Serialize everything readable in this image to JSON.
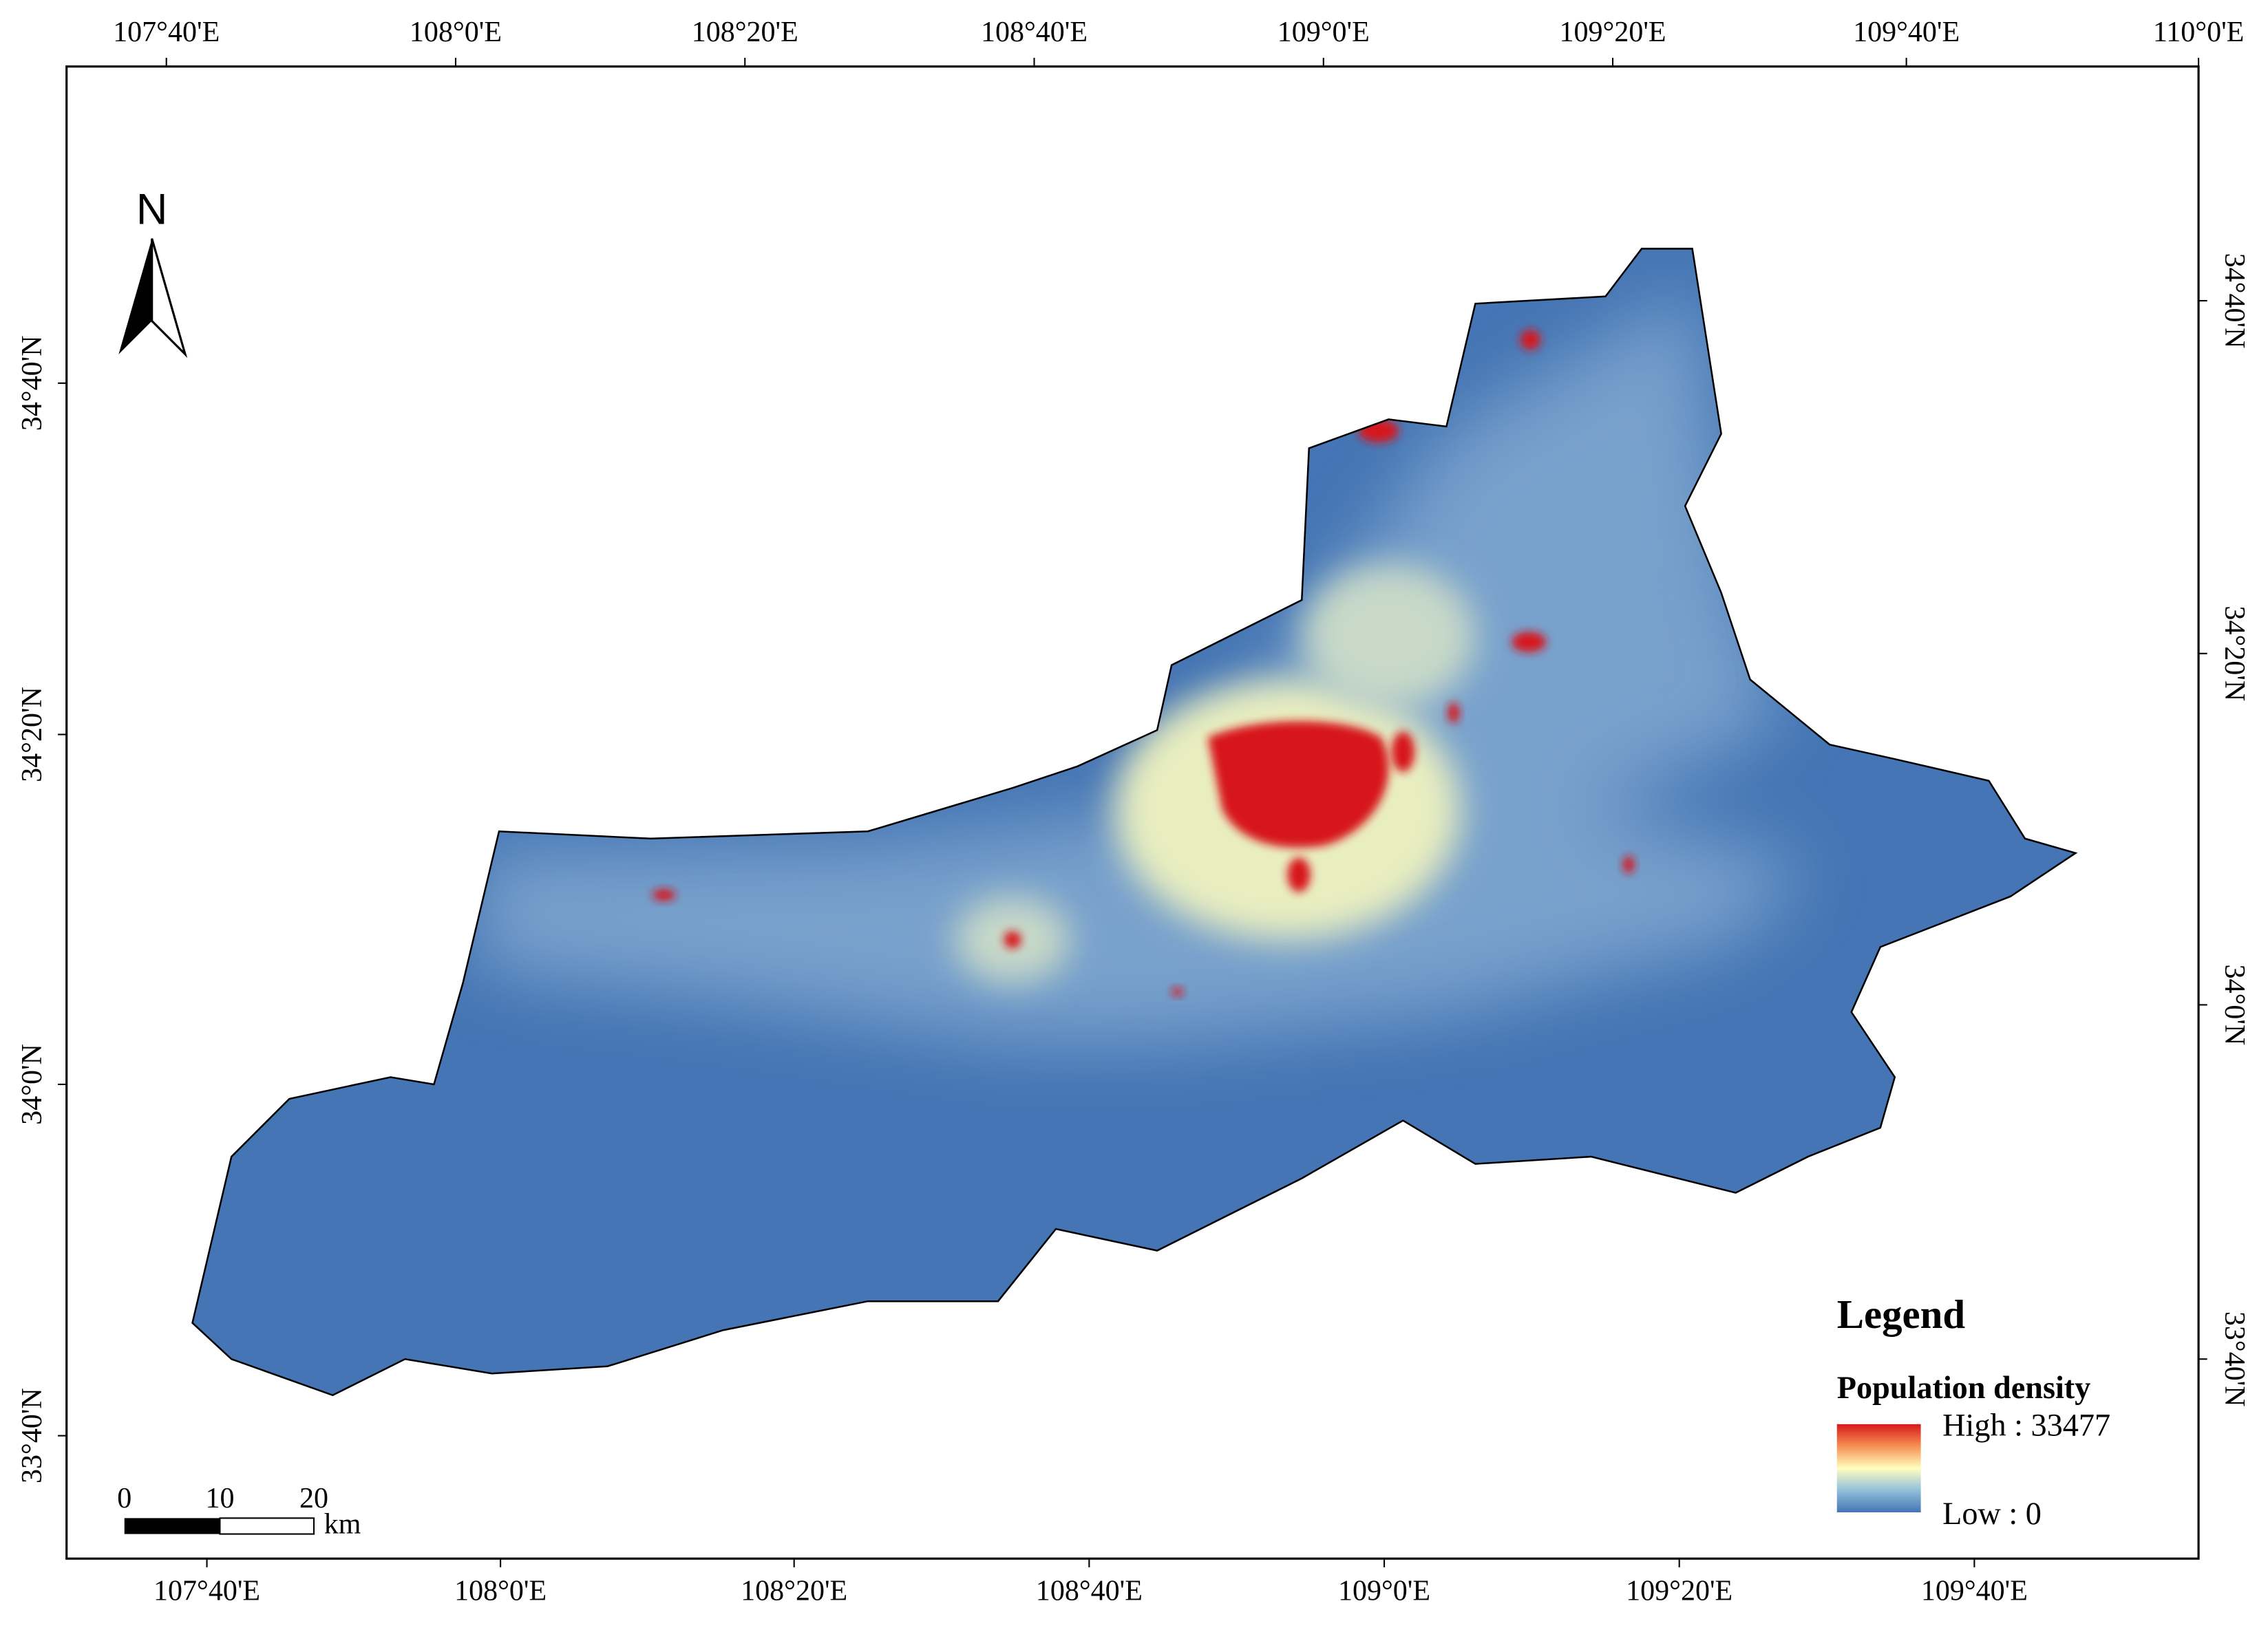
{
  "map": {
    "top_labels": [
      "107°40'E",
      "108°0'E",
      "108°20'E",
      "108°40'E",
      "109°0'E",
      "109°20'E",
      "109°40'E",
      "110°0'E"
    ],
    "bottom_labels": [
      "107°40'E",
      "108°0'E",
      "108°20'E",
      "108°40'E",
      "109°0'E",
      "109°20'E",
      "109°40'E"
    ],
    "left_labels": [
      "34°40'N",
      "34°20'N",
      "34°0'N",
      "33°40'N"
    ],
    "right_labels": [
      "34°40'N",
      "34°20'N",
      "34°0'N",
      "33°40'N"
    ],
    "north": "N",
    "scale_bar": {
      "labels": [
        "0",
        "10",
        "20"
      ],
      "unit": "km"
    },
    "legend": {
      "title": "Legend",
      "layer": "Population density",
      "high": "High : 33477",
      "low": "Low : 0"
    }
  }
}
